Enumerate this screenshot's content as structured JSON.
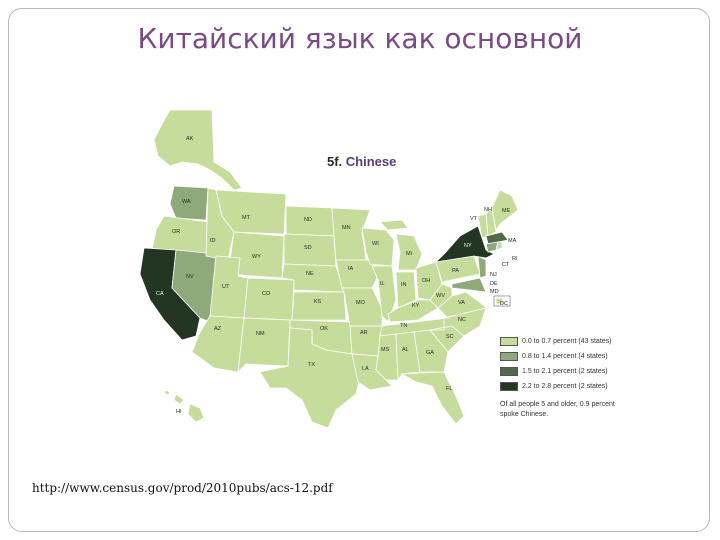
{
  "slide": {
    "title": "Китайский язык как основной",
    "source": "http://www.census.gov/prod/2010pubs/acs-12.pdf"
  },
  "map": {
    "heading_prefix": "5f.",
    "heading_main": "Chinese",
    "colors": {
      "level1": "#c6dc9b",
      "level2": "#8ea97a",
      "level3": "#4f6a48",
      "level4": "#233523",
      "border": "#ffffff"
    },
    "legend": [
      {
        "label": "0.0 to 0.7 percent (43 states)",
        "color": "#c6dc9b"
      },
      {
        "label": "0.8 to 1.4 percent (4 states)",
        "color": "#8ea97a"
      },
      {
        "label": "1.5 to 2.1 percent (2 states)",
        "color": "#4f6a48"
      },
      {
        "label": "2.2 to 2.8 percent (2 states)",
        "color": "#233523"
      }
    ],
    "footnote": "Of all people 5 and older, 0.9 percent spoke Chinese.",
    "state_labels": [
      "AK",
      "WA",
      "OR",
      "CA",
      "NV",
      "ID",
      "MT",
      "WY",
      "UT",
      "AZ",
      "CO",
      "NM",
      "ND",
      "SD",
      "NE",
      "KS",
      "OK",
      "TX",
      "MN",
      "IA",
      "MO",
      "AR",
      "LA",
      "WI",
      "IL",
      "MI",
      "IN",
      "OH",
      "KY",
      "TN",
      "MS",
      "AL",
      "GA",
      "FL",
      "SC",
      "NC",
      "VA",
      "WV",
      "PA",
      "NY",
      "VT",
      "NH",
      "ME",
      "MA",
      "RI",
      "CT",
      "NJ",
      "DE",
      "MD",
      "DC",
      "HI"
    ]
  }
}
